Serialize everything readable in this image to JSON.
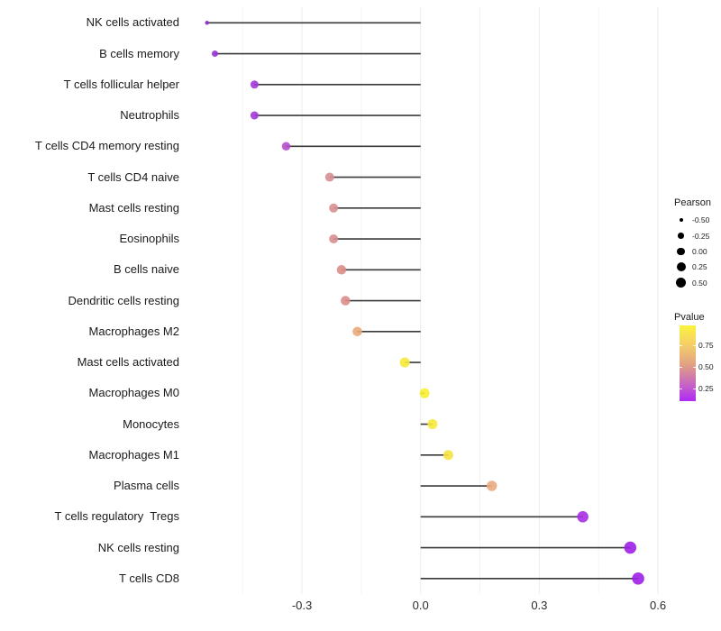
{
  "chart_data": {
    "type": "lollipop",
    "title": "",
    "xlabel": "",
    "ylabel": "",
    "x_axis": {
      "range": [
        -0.6,
        0.675
      ],
      "major_ticks": [
        {
          "value": -0.3,
          "label": "-0.3"
        },
        {
          "value": 0.0,
          "label": "0.0"
        },
        {
          "value": 0.3,
          "label": "0.3"
        },
        {
          "value": 0.6,
          "label": "0.6"
        }
      ],
      "minor_ticks": [
        -0.45,
        -0.15,
        0.15,
        0.45
      ],
      "grid": true
    },
    "rows": [
      {
        "label": "NK cells activated",
        "pearson": -0.54,
        "dot_color": "#8b27cd",
        "dot_diameter": 4.5
      },
      {
        "label": "B cells memory",
        "pearson": -0.52,
        "dot_color": "#9733d6",
        "dot_diameter": 7
      },
      {
        "label": "T cells follicular helper",
        "pearson": -0.42,
        "dot_color": "#a23ad7",
        "dot_diameter": 9
      },
      {
        "label": "Neutrophils",
        "pearson": -0.42,
        "dot_color": "#a23ad7",
        "dot_diameter": 9
      },
      {
        "label": "T cells CD4 memory resting",
        "pearson": -0.34,
        "dot_color": "#b54ecd",
        "dot_diameter": 9.5
      },
      {
        "label": "T cells CD4 naive",
        "pearson": -0.23,
        "dot_color": "#d98f94",
        "dot_diameter": 10
      },
      {
        "label": "Mast cells resting",
        "pearson": -0.22,
        "dot_color": "#d98f92",
        "dot_diameter": 10
      },
      {
        "label": "Eosinophils",
        "pearson": -0.22,
        "dot_color": "#d98f92",
        "dot_diameter": 10
      },
      {
        "label": "B cells naive",
        "pearson": -0.2,
        "dot_color": "#da8e89",
        "dot_diameter": 10.5
      },
      {
        "label": "Dendritic cells resting",
        "pearson": -0.19,
        "dot_color": "#da8e89",
        "dot_diameter": 10.5
      },
      {
        "label": "Macrophages M2",
        "pearson": -0.16,
        "dot_color": "#eaa878",
        "dot_diameter": 10.5
      },
      {
        "label": "Mast cells activated",
        "pearson": -0.04,
        "dot_color": "#f7e93a",
        "dot_diameter": 11
      },
      {
        "label": "Macrophages M0",
        "pearson": 0.01,
        "dot_color": "#f8ee31",
        "dot_diameter": 11
      },
      {
        "label": "Monocytes",
        "pearson": 0.03,
        "dot_color": "#f7e93a",
        "dot_diameter": 11
      },
      {
        "label": "Macrophages M1",
        "pearson": 0.07,
        "dot_color": "#f6e244",
        "dot_diameter": 11
      },
      {
        "label": "Plasma cells",
        "pearson": 0.18,
        "dot_color": "#eaab80",
        "dot_diameter": 11.5
      },
      {
        "label": "T cells regulatory  Tregs",
        "pearson": 0.41,
        "dot_color": "#a92ee6",
        "dot_diameter": 12.5
      },
      {
        "label": "NK cells resting",
        "pearson": 0.53,
        "dot_color": "#9d1fe8",
        "dot_diameter": 13.5
      },
      {
        "label": "T cells CD8",
        "pearson": 0.55,
        "dot_color": "#9d1fe8",
        "dot_diameter": 13.5
      }
    ],
    "legends": {
      "pearson": {
        "title": "Pearson",
        "entries": [
          {
            "label": "-0.50",
            "diameter": 4
          },
          {
            "label": "-0.25",
            "diameter": 6.5
          },
          {
            "label": "0.00",
            "diameter": 8.5
          },
          {
            "label": "0.25",
            "diameter": 10
          },
          {
            "label": "0.50",
            "diameter": 11
          }
        ],
        "dot_color": "#000000"
      },
      "pvalue": {
        "title": "Pvalue",
        "tick_labels": [
          "0.75",
          "0.50",
          "0.25"
        ],
        "gradient_top_to_bottom": [
          {
            "pos": 0,
            "color": "#f9f43d"
          },
          {
            "pos": 0.26,
            "color": "#f5cd69"
          },
          {
            "pos": 0.52,
            "color": "#e0a183"
          },
          {
            "pos": 0.8,
            "color": "#c45fc8"
          },
          {
            "pos": 1,
            "color": "#ae2af5"
          }
        ]
      }
    },
    "style": {
      "line_color": "#3a3a3a",
      "grid_major_color": "#ececec",
      "grid_minor_color": "#f4f4f4",
      "background": "#ffffff"
    }
  }
}
